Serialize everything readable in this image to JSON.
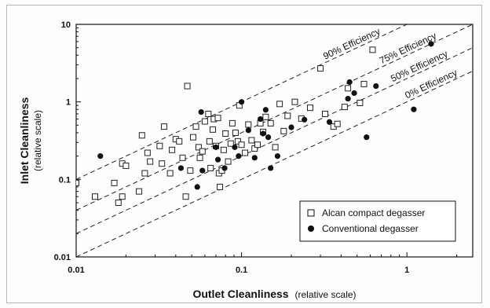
{
  "chart_data": {
    "type": "scatter",
    "xscale": "log",
    "yscale": "log",
    "xlim": [
      0.01,
      2.5
    ],
    "ylim": [
      0.01,
      10
    ],
    "xticks": [
      "0.01",
      "0.1",
      "1"
    ],
    "yticks": [
      "10",
      "1",
      "0.1",
      "0.01"
    ],
    "xlabel": "Outlet Cleanliness",
    "xlabel_sub": "(relative scale)",
    "ylabel": "Inlet Cleanliness",
    "ylabel_sub": "(relative scale)",
    "grid": false,
    "legend_position": "bottom-right",
    "series": [
      {
        "name": "Alcan compact degasser",
        "marker": "open-square",
        "points": [
          [
            0.01,
            0.09
          ],
          [
            0.013,
            0.06
          ],
          [
            0.017,
            0.09
          ],
          [
            0.018,
            0.05
          ],
          [
            0.019,
            0.06
          ],
          [
            0.019,
            0.16
          ],
          [
            0.02,
            0.15
          ],
          [
            0.024,
            0.07
          ],
          [
            0.025,
            0.37
          ],
          [
            0.026,
            0.12
          ],
          [
            0.027,
            0.22
          ],
          [
            0.028,
            0.17
          ],
          [
            0.032,
            0.27
          ],
          [
            0.033,
            0.16
          ],
          [
            0.034,
            0.48
          ],
          [
            0.037,
            0.12
          ],
          [
            0.038,
            0.24
          ],
          [
            0.04,
            0.33
          ],
          [
            0.042,
            0.31
          ],
          [
            0.044,
            0.19
          ],
          [
            0.046,
            0.06
          ],
          [
            0.047,
            1.6
          ],
          [
            0.049,
            0.13
          ],
          [
            0.051,
            0.35
          ],
          [
            0.053,
            0.48
          ],
          [
            0.055,
            0.26
          ],
          [
            0.056,
            0.19
          ],
          [
            0.058,
            0.23
          ],
          [
            0.06,
            0.56
          ],
          [
            0.063,
            0.7
          ],
          [
            0.064,
            0.31
          ],
          [
            0.065,
            0.14
          ],
          [
            0.067,
            0.44
          ],
          [
            0.068,
            0.6
          ],
          [
            0.07,
            0.27
          ],
          [
            0.072,
            0.62
          ],
          [
            0.073,
            0.12
          ],
          [
            0.074,
            0.08
          ],
          [
            0.076,
            0.13
          ],
          [
            0.078,
            0.24
          ],
          [
            0.08,
            0.39
          ],
          [
            0.083,
            0.17
          ],
          [
            0.086,
            0.29
          ],
          [
            0.088,
            0.53
          ],
          [
            0.092,
            0.4
          ],
          [
            0.095,
            0.31
          ],
          [
            0.097,
            0.9
          ],
          [
            0.1,
            0.28
          ],
          [
            0.105,
            0.22
          ],
          [
            0.11,
            0.51
          ],
          [
            0.115,
            0.32
          ],
          [
            0.12,
            0.25
          ],
          [
            0.125,
            0.28
          ],
          [
            0.13,
            0.53
          ],
          [
            0.135,
            0.41
          ],
          [
            0.14,
            0.64
          ],
          [
            0.15,
            0.53
          ],
          [
            0.16,
            0.26
          ],
          [
            0.17,
            0.94
          ],
          [
            0.18,
            0.42
          ],
          [
            0.19,
            0.66
          ],
          [
            0.21,
            1.0
          ],
          [
            0.23,
            0.61
          ],
          [
            0.26,
            0.84
          ],
          [
            0.3,
            2.7
          ],
          [
            0.32,
            0.7
          ],
          [
            0.36,
            0.48
          ],
          [
            0.38,
            0.52
          ],
          [
            0.42,
            0.86
          ],
          [
            0.44,
            1.5
          ],
          [
            0.52,
            0.97
          ],
          [
            0.55,
            1.7
          ],
          [
            0.62,
            4.7
          ]
        ]
      },
      {
        "name": "Conventional degasser",
        "marker": "filled-circle",
        "points": [
          [
            0.014,
            0.2
          ],
          [
            0.043,
            0.14
          ],
          [
            0.054,
            0.08
          ],
          [
            0.057,
            0.74
          ],
          [
            0.058,
            0.13
          ],
          [
            0.07,
            0.26
          ],
          [
            0.072,
            0.18
          ],
          [
            0.079,
            0.14
          ],
          [
            0.091,
            0.26
          ],
          [
            0.096,
            0.2
          ],
          [
            0.1,
            1.0
          ],
          [
            0.11,
            0.43
          ],
          [
            0.12,
            0.19
          ],
          [
            0.13,
            0.6
          ],
          [
            0.135,
            0.39
          ],
          [
            0.14,
            0.79
          ],
          [
            0.145,
            0.35
          ],
          [
            0.15,
            0.14
          ],
          [
            0.165,
            0.2
          ],
          [
            0.2,
            0.47
          ],
          [
            0.24,
            0.59
          ],
          [
            0.34,
            0.55
          ],
          [
            0.44,
            1.1
          ],
          [
            0.45,
            1.8
          ],
          [
            0.48,
            1.3
          ],
          [
            0.57,
            0.35
          ],
          [
            0.65,
            1.6
          ],
          [
            1.1,
            0.8
          ],
          [
            1.4,
            5.6
          ]
        ]
      }
    ],
    "efficiency_lines": [
      {
        "label": "90% Efficiency",
        "ratio": 10
      },
      {
        "label": "75% Efficiency",
        "ratio": 4
      },
      {
        "label": "50% Efficiency",
        "ratio": 2
      },
      {
        "label": "0% Efficiency",
        "ratio": 1
      }
    ]
  }
}
